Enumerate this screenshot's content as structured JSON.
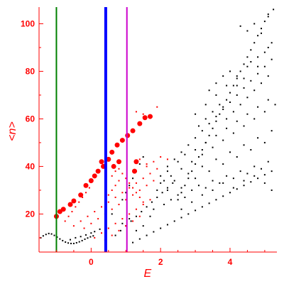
{
  "chart_data": {
    "type": "scatter",
    "xlabel": "E",
    "ylabel": "<n>",
    "xlim": [
      -1.5,
      5.35
    ],
    "ylim": [
      4,
      107
    ],
    "xticks": [
      0,
      2,
      4
    ],
    "yticks": [
      20,
      40,
      60,
      80,
      100
    ],
    "grid": false,
    "legend": "none",
    "colors": {
      "axis": "#ff0000",
      "points_black": "#000000",
      "points_red": "#ff0000",
      "vline_green": "#008000",
      "vline_blue": "#0000ff",
      "vline_magenta": "#cc00cc"
    },
    "vertical_lines": [
      {
        "x": -1.0,
        "color": "#008000",
        "width": 2
      },
      {
        "x": 0.42,
        "color": "#0000ff",
        "width": 4
      },
      {
        "x": 1.03,
        "color": "#cc00cc",
        "width": 2
      }
    ],
    "series": [
      {
        "color": "#000000",
        "style": "dots",
        "points": [
          [
            -1.45,
            10
          ],
          [
            -1.38,
            10.8
          ],
          [
            -1.3,
            11.4
          ],
          [
            -1.22,
            11.8
          ],
          [
            -1.14,
            11.6
          ],
          [
            -1.06,
            11
          ],
          [
            -0.98,
            10.3
          ],
          [
            -0.9,
            9.5
          ],
          [
            -0.82,
            8.8
          ],
          [
            -0.74,
            8.2
          ],
          [
            -0.66,
            7.8
          ],
          [
            -0.58,
            7.6
          ],
          [
            -0.5,
            7.6
          ],
          [
            -0.42,
            7.9
          ],
          [
            -0.34,
            8.3
          ],
          [
            -0.26,
            8.8
          ],
          [
            -0.18,
            9.4
          ],
          [
            -0.1,
            9.9
          ],
          [
            -0.02,
            10.4
          ],
          [
            0.06,
            10.8
          ],
          [
            -0.6,
            9.2
          ],
          [
            -0.45,
            10
          ],
          [
            -0.3,
            10.5
          ],
          [
            -0.15,
            11.2
          ],
          [
            0.0,
            12
          ],
          [
            0.1,
            12.6
          ],
          [
            0.25,
            13.6
          ],
          [
            0.7,
            11
          ],
          [
            0.85,
            13
          ],
          [
            1.0,
            15
          ],
          [
            1.15,
            17
          ],
          [
            1.3,
            19
          ],
          [
            1.45,
            21
          ],
          [
            1.6,
            23
          ],
          [
            1.75,
            25
          ],
          [
            1.9,
            27
          ],
          [
            2.05,
            29
          ],
          [
            2.2,
            31
          ],
          [
            2.35,
            33
          ],
          [
            1.2,
            8
          ],
          [
            1.4,
            9.5
          ],
          [
            1.6,
            11
          ],
          [
            1.8,
            12.5
          ],
          [
            2.0,
            14
          ],
          [
            2.2,
            15.5
          ],
          [
            2.4,
            17
          ],
          [
            2.6,
            18.5
          ],
          [
            2.8,
            20
          ],
          [
            3.0,
            21.5
          ],
          [
            3.2,
            23
          ],
          [
            3.4,
            24.5
          ],
          [
            3.6,
            26
          ],
          [
            3.8,
            27.5
          ],
          [
            4.0,
            29
          ],
          [
            4.2,
            30.5
          ],
          [
            4.4,
            32
          ],
          [
            4.6,
            33.5
          ],
          [
            4.8,
            35
          ],
          [
            5.0,
            36.5
          ],
          [
            5.2,
            38
          ],
          [
            2.5,
            26
          ],
          [
            2.6,
            29
          ],
          [
            2.7,
            32
          ],
          [
            2.8,
            35
          ],
          [
            2.9,
            38
          ],
          [
            3.0,
            41
          ],
          [
            3.1,
            44
          ],
          [
            3.2,
            47
          ],
          [
            3.3,
            50
          ],
          [
            3.4,
            53
          ],
          [
            3.5,
            56
          ],
          [
            3.6,
            59
          ],
          [
            3.7,
            62
          ],
          [
            3.8,
            65
          ],
          [
            3.9,
            68
          ],
          [
            4.0,
            71
          ],
          [
            4.1,
            74
          ],
          [
            4.2,
            77
          ],
          [
            4.3,
            80
          ],
          [
            4.4,
            83
          ],
          [
            4.5,
            86
          ],
          [
            4.6,
            89
          ],
          [
            4.7,
            92
          ],
          [
            4.8,
            95
          ],
          [
            4.9,
            98
          ],
          [
            5.0,
            101
          ],
          [
            5.1,
            104
          ],
          [
            2.2,
            40
          ],
          [
            2.4,
            43
          ],
          [
            2.6,
            46
          ],
          [
            2.8,
            49
          ],
          [
            3.0,
            52
          ],
          [
            3.2,
            55
          ],
          [
            3.4,
            58
          ],
          [
            3.6,
            61
          ],
          [
            3.8,
            64
          ],
          [
            4.0,
            67
          ],
          [
            4.2,
            70
          ],
          [
            4.4,
            73
          ],
          [
            4.6,
            76
          ],
          [
            4.8,
            79
          ],
          [
            5.0,
            82
          ],
          [
            5.2,
            85
          ],
          [
            2.0,
            33
          ],
          [
            2.3,
            36
          ],
          [
            2.6,
            39
          ],
          [
            2.9,
            42
          ],
          [
            3.2,
            45
          ],
          [
            3.5,
            48
          ],
          [
            3.8,
            51
          ],
          [
            4.1,
            54
          ],
          [
            4.4,
            57
          ],
          [
            4.7,
            60
          ],
          [
            5.0,
            63
          ],
          [
            5.3,
            66
          ],
          [
            3.0,
            62
          ],
          [
            3.3,
            66
          ],
          [
            3.6,
            70
          ],
          [
            3.9,
            74
          ],
          [
            4.2,
            78
          ],
          [
            4.5,
            82
          ],
          [
            4.8,
            86
          ],
          [
            5.1,
            90
          ],
          [
            4.3,
            99
          ],
          [
            4.5,
            97
          ],
          [
            4.7,
            100
          ],
          [
            4.9,
            96
          ],
          [
            5.1,
            103
          ],
          [
            5.25,
            106
          ],
          [
            2.1,
            24
          ],
          [
            2.3,
            26
          ],
          [
            2.5,
            28
          ],
          [
            2.7,
            27
          ],
          [
            2.9,
            30
          ],
          [
            3.1,
            32
          ],
          [
            3.3,
            31
          ],
          [
            3.5,
            34
          ],
          [
            3.7,
            33
          ],
          [
            3.9,
            36
          ],
          [
            4.1,
            35
          ],
          [
            4.3,
            38
          ],
          [
            4.5,
            37
          ],
          [
            4.7,
            40
          ],
          [
            4.9,
            39
          ],
          [
            5.1,
            42
          ],
          [
            2.2,
            30
          ],
          [
            2.4,
            34
          ],
          [
            2.6,
            31
          ],
          [
            2.8,
            37
          ],
          [
            3.0,
            35
          ],
          [
            3.2,
            40
          ],
          [
            3.4,
            38
          ],
          [
            3.6,
            43
          ],
          [
            3.8,
            41
          ],
          [
            4.0,
            46
          ],
          [
            4.2,
            44
          ],
          [
            4.4,
            49
          ],
          [
            4.6,
            47
          ],
          [
            4.8,
            52
          ],
          [
            5.0,
            50
          ],
          [
            5.2,
            55
          ],
          [
            2.0,
            36
          ],
          [
            2.2,
            38
          ],
          [
            2.5,
            42
          ],
          [
            2.7,
            45
          ],
          [
            3.0,
            47
          ],
          [
            3.3,
            50
          ],
          [
            3.6,
            53
          ],
          [
            3.9,
            56
          ],
          [
            4.2,
            59
          ],
          [
            4.5,
            62
          ],
          [
            4.8,
            65
          ],
          [
            5.1,
            68
          ],
          [
            0.9,
            26
          ],
          [
            1.0,
            29
          ],
          [
            1.1,
            32
          ],
          [
            1.2,
            35
          ],
          [
            1.3,
            38
          ],
          [
            1.4,
            41
          ],
          [
            1.5,
            44
          ],
          [
            0.6,
            20
          ],
          [
            0.8,
            24
          ],
          [
            1.9,
            30
          ],
          [
            2.1,
            34
          ],
          [
            1.8,
            22
          ],
          [
            1.7,
            19
          ],
          [
            1.5,
            15
          ],
          [
            1.3,
            13
          ],
          [
            1.1,
            18
          ],
          [
            0.9,
            16
          ],
          [
            2.6,
            22
          ],
          [
            2.9,
            25
          ],
          [
            3.2,
            28
          ],
          [
            3.5,
            30
          ],
          [
            3.8,
            33
          ],
          [
            4.1,
            31
          ],
          [
            4.4,
            34
          ],
          [
            4.7,
            36
          ],
          [
            5.0,
            33
          ],
          [
            5.2,
            30
          ],
          [
            3.4,
            72
          ],
          [
            3.6,
            75
          ],
          [
            3.8,
            78
          ],
          [
            4.0,
            80
          ],
          [
            4.2,
            74
          ],
          [
            4.4,
            77
          ],
          [
            4.6,
            84
          ],
          [
            4.8,
            82
          ],
          [
            5.0,
            88
          ],
          [
            5.2,
            92
          ],
          [
            3.1,
            57
          ],
          [
            3.3,
            60
          ],
          [
            3.5,
            63
          ],
          [
            3.7,
            66
          ],
          [
            3.9,
            60
          ],
          [
            4.1,
            63
          ],
          [
            4.3,
            66
          ],
          [
            4.5,
            69
          ],
          [
            4.7,
            72
          ],
          [
            4.9,
            75
          ],
          [
            5.1,
            78
          ]
        ]
      },
      {
        "color": "#ff0000",
        "style": "dots",
        "points": [
          [
            -0.75,
            17
          ],
          [
            -0.65,
            19
          ],
          [
            -0.55,
            21
          ],
          [
            -0.45,
            23
          ],
          [
            -0.35,
            25
          ],
          [
            -0.25,
            27
          ],
          [
            -0.15,
            29
          ],
          [
            -0.05,
            31
          ],
          [
            -0.5,
            15
          ],
          [
            -0.3,
            17
          ],
          [
            -0.1,
            19
          ],
          [
            0.1,
            21
          ],
          [
            0.3,
            23
          ],
          [
            0.5,
            25
          ],
          [
            0.7,
            27
          ],
          [
            0.9,
            29
          ],
          [
            1.1,
            31
          ],
          [
            1.3,
            33
          ],
          [
            1.5,
            35
          ],
          [
            1.7,
            37
          ],
          [
            1.9,
            39
          ],
          [
            -0.2,
            14
          ],
          [
            0.0,
            16
          ],
          [
            0.2,
            18
          ],
          [
            0.4,
            20
          ],
          [
            0.6,
            22
          ],
          [
            0.8,
            24
          ],
          [
            1.0,
            26
          ],
          [
            1.2,
            28
          ],
          [
            1.4,
            30
          ],
          [
            1.6,
            32
          ],
          [
            1.8,
            34
          ],
          [
            0.1,
            10
          ],
          [
            0.3,
            12
          ],
          [
            0.5,
            14
          ],
          [
            0.7,
            16
          ],
          [
            0.9,
            18
          ],
          [
            1.1,
            20
          ],
          [
            1.3,
            22
          ],
          [
            1.5,
            24
          ],
          [
            1.7,
            26
          ],
          [
            0.4,
            9
          ],
          [
            0.6,
            11
          ],
          [
            0.8,
            13
          ],
          [
            1.0,
            15
          ],
          [
            1.2,
            17
          ],
          [
            1.4,
            19
          ],
          [
            0.6,
            36
          ],
          [
            0.7,
            38
          ],
          [
            0.8,
            39
          ],
          [
            0.9,
            37
          ],
          [
            1.0,
            35
          ],
          [
            1.1,
            33
          ],
          [
            1.2,
            31
          ],
          [
            1.3,
            29
          ],
          [
            1.4,
            27
          ],
          [
            1.5,
            25
          ],
          [
            0.5,
            28
          ],
          [
            0.6,
            30
          ],
          [
            0.7,
            32
          ],
          [
            0.8,
            34
          ],
          [
            1.6,
            40
          ],
          [
            1.8,
            42
          ],
          [
            2.0,
            44
          ],
          [
            2.2,
            43
          ],
          [
            1.3,
            63
          ],
          [
            1.5,
            62
          ],
          [
            1.7,
            61
          ],
          [
            1.9,
            65
          ],
          [
            1.4,
            43
          ],
          [
            1.6,
            41
          ]
        ]
      },
      {
        "color": "#ff0000",
        "style": "big",
        "points": [
          [
            -1.0,
            19
          ],
          [
            -0.9,
            21
          ],
          [
            -0.8,
            22
          ],
          [
            -0.6,
            24
          ],
          [
            -0.5,
            25.5
          ],
          [
            -0.3,
            28
          ],
          [
            -0.15,
            32
          ],
          [
            0.0,
            34
          ],
          [
            0.1,
            36
          ],
          [
            0.2,
            38
          ],
          [
            0.35,
            40
          ],
          [
            0.5,
            43
          ],
          [
            0.6,
            46
          ],
          [
            0.75,
            49
          ],
          [
            0.9,
            51
          ],
          [
            1.05,
            53
          ],
          [
            1.2,
            55
          ],
          [
            1.4,
            58
          ],
          [
            1.55,
            60.5
          ],
          [
            1.7,
            61
          ],
          [
            1.3,
            42
          ],
          [
            1.25,
            38
          ],
          [
            0.8,
            42
          ],
          [
            0.65,
            40
          ],
          [
            0.3,
            42
          ]
        ]
      }
    ]
  }
}
